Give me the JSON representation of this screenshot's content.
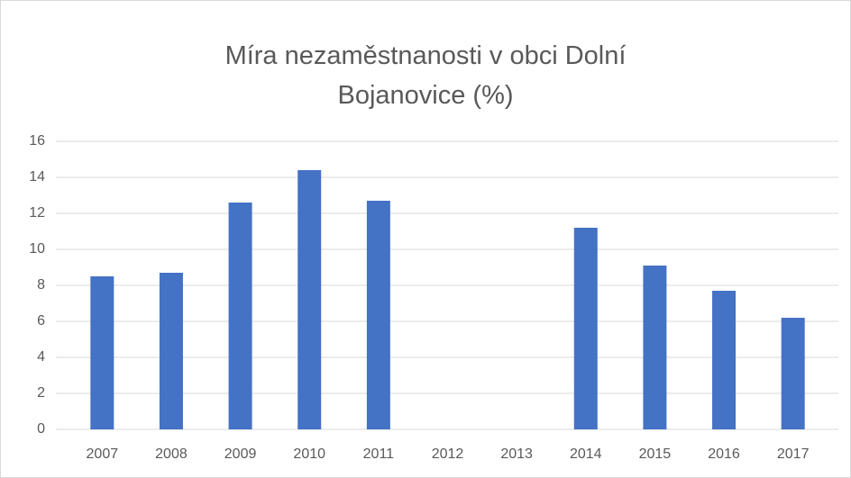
{
  "chart_data": {
    "type": "bar",
    "title": "Míra nezaměstnanosti v obci Dolní Bojanovice (%)",
    "categories": [
      "2007",
      "2008",
      "2009",
      "2010",
      "2011",
      "2012",
      "2013",
      "2014",
      "2015",
      "2016",
      "2017"
    ],
    "values": [
      8.5,
      8.7,
      12.6,
      14.4,
      12.7,
      null,
      null,
      11.2,
      9.1,
      7.7,
      6.2
    ],
    "color": "#4472c4",
    "ylim": [
      0,
      16
    ],
    "yticks": [
      0,
      2,
      4,
      6,
      8,
      10,
      12,
      14,
      16
    ],
    "grid": true
  }
}
